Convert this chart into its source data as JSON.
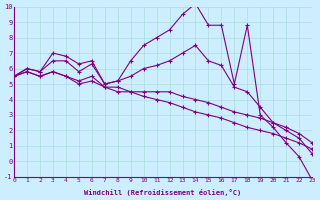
{
  "xlabel": "Windchill (Refroidissement éolien,°C)",
  "ylabel": "",
  "background_color": "#cceeff",
  "line_color": "#800080",
  "grid_color": "#aadddd",
  "xlim": [
    0,
    23
  ],
  "ylim": [
    -1,
    10
  ],
  "xticks": [
    0,
    1,
    2,
    3,
    4,
    5,
    6,
    7,
    8,
    9,
    10,
    11,
    12,
    13,
    14,
    15,
    16,
    17,
    18,
    19,
    20,
    21,
    22,
    23
  ],
  "yticks": [
    -1,
    0,
    1,
    2,
    3,
    4,
    5,
    6,
    7,
    8,
    9,
    10
  ],
  "series": [
    [
      5.5,
      6.0,
      5.8,
      7.0,
      6.8,
      6.3,
      6.5,
      5.0,
      5.2,
      6.5,
      7.5,
      8.0,
      8.5,
      9.5,
      10.2,
      8.8,
      8.8,
      5.0,
      8.8,
      3.0,
      2.2,
      1.2,
      0.3,
      -1.2
    ],
    [
      5.5,
      6.0,
      5.8,
      6.5,
      6.5,
      5.8,
      6.3,
      5.0,
      5.2,
      5.5,
      6.0,
      6.2,
      6.5,
      7.0,
      7.5,
      6.5,
      6.2,
      4.8,
      4.5,
      3.5,
      2.5,
      2.0,
      1.5,
      0.5
    ],
    [
      5.5,
      5.8,
      5.5,
      5.8,
      5.5,
      5.2,
      5.5,
      4.8,
      4.5,
      4.5,
      4.5,
      4.5,
      4.5,
      4.2,
      4.0,
      3.8,
      3.5,
      3.2,
      3.0,
      2.8,
      2.5,
      2.2,
      1.8,
      1.2
    ],
    [
      5.5,
      5.8,
      5.5,
      5.8,
      5.5,
      5.0,
      5.2,
      4.8,
      4.8,
      4.5,
      4.2,
      4.0,
      3.8,
      3.5,
      3.2,
      3.0,
      2.8,
      2.5,
      2.2,
      2.0,
      1.8,
      1.5,
      1.2,
      0.8
    ]
  ]
}
